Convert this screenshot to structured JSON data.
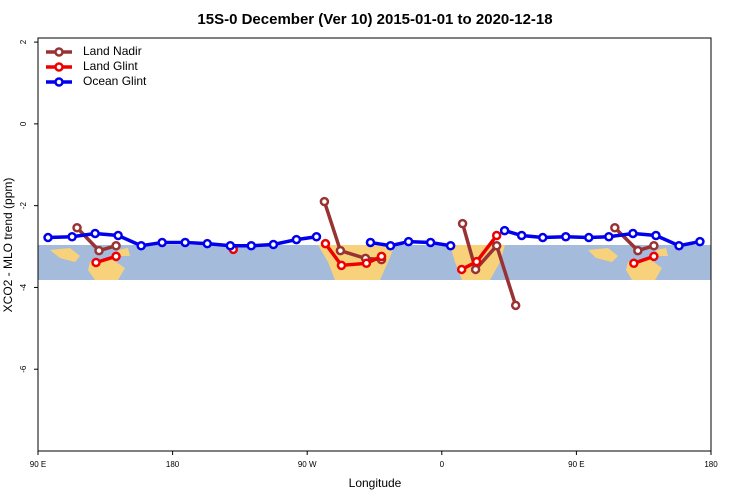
{
  "chart_data": {
    "type": "line",
    "title": "15S-0 December (Ver 10)   2015-01-01 to 2020-12-18",
    "x_label": "Longitude",
    "y_label": "XCO2 - MLO trend (ppm)",
    "xlim": [
      90,
      540
    ],
    "ylim": [
      -8,
      2.1
    ],
    "xticks": [
      {
        "value": 90,
        "label": "90 E"
      },
      180,
      {
        "value": 270,
        "label": "90 W"
      },
      {
        "value": 360,
        "label": "0"
      },
      {
        "value": 450,
        "label": "90 E"
      },
      {
        "value": 540,
        "label": "180"
      }
    ],
    "yticks": [
      2,
      0,
      -2,
      -4,
      -6
    ],
    "legend": "top-left",
    "series": [
      {
        "name": "Land Nadir",
        "color": "#993333",
        "x": [
          116.1,
          130.8,
          142.2,
          null,
          281.5,
          292.2,
          309,
          319.7,
          null,
          373.9,
          382.6,
          396.7,
          409.4,
          null,
          475.7,
          491.1,
          501.8
        ],
        "values": [
          -2.54,
          -3.1,
          -2.98,
          null,
          -1.9,
          -3.1,
          -3.29,
          -3.32,
          null,
          -2.44,
          -3.56,
          -2.98,
          -4.44,
          null,
          -2.54,
          -3.1,
          -2.98
        ]
      },
      {
        "name": "Land Glint",
        "color": "#ee0000",
        "x": [
          128.8,
          142.2,
          null,
          220.6,
          null,
          282.2,
          292.9,
          309.6,
          319.7,
          null,
          373.3,
          383.3,
          396.7,
          null,
          488.4,
          501.8
        ],
        "values": [
          -3.39,
          -3.24,
          null,
          -3.07,
          null,
          -2.93,
          -3.46,
          -3.41,
          -3.24,
          null,
          -3.56,
          -3.37,
          -2.73,
          null,
          -3.41,
          -3.24
        ]
      },
      {
        "name": "Ocean Glint",
        "color": "#0000ee",
        "x": [
          96.7,
          112.8,
          128.2,
          143.6,
          159,
          173,
          188.4,
          203.2,
          218.6,
          232.6,
          247.4,
          262.8,
          276.2,
          null,
          312.3,
          325.7,
          337.8,
          352.5,
          365.9,
          null,
          402,
          413.4,
          427.5,
          442.9,
          458.3,
          471.7,
          487.8,
          503.2,
          518.6,
          532.6
        ],
        "values": [
          -2.78,
          -2.76,
          -2.68,
          -2.73,
          -2.98,
          -2.9,
          -2.9,
          -2.93,
          -2.98,
          -2.98,
          -2.95,
          -2.83,
          -2.76,
          null,
          -2.9,
          -2.98,
          -2.88,
          -2.9,
          -2.98,
          null,
          -2.61,
          -2.73,
          -2.78,
          -2.76,
          -2.78,
          -2.76,
          -2.68,
          -2.73,
          -2.98,
          -2.88
        ]
      }
    ]
  }
}
